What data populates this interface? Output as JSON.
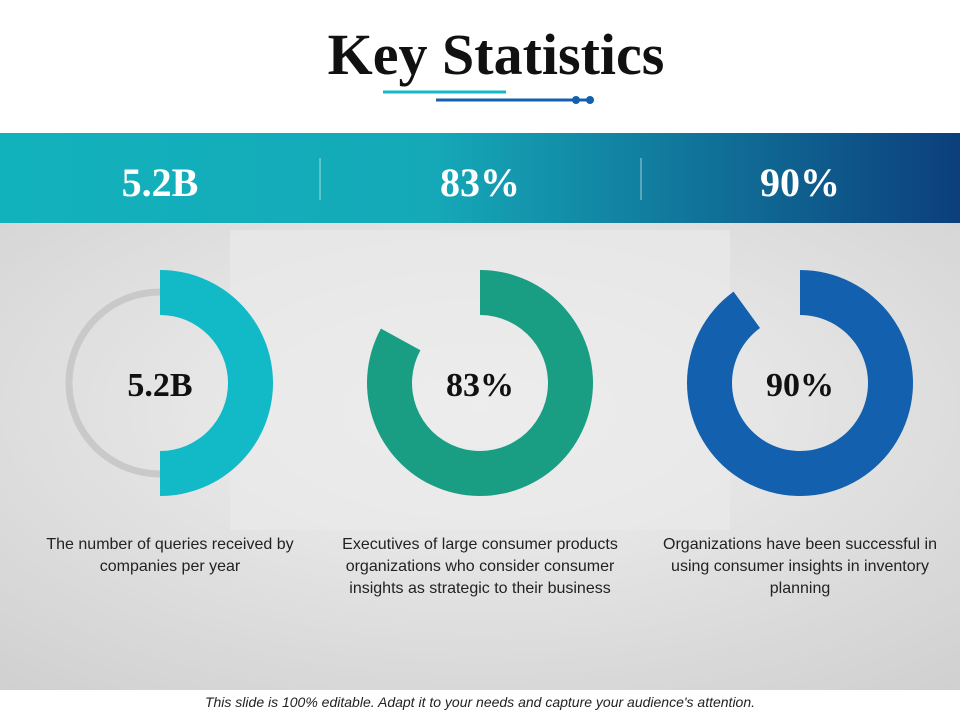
{
  "title": "Key Statistics",
  "stats": [
    {
      "value": "5.2B",
      "arc_percent": 50,
      "color": "#12b9c6",
      "description": "The number of queries received by companies per year"
    },
    {
      "value": "83%",
      "arc_percent": 83,
      "color": "#1a9e83",
      "description": "Executives of large consumer products organizations who consider consumer insights as strategic to their business"
    },
    {
      "value": "90%",
      "arc_percent": 90,
      "color": "#1360ae",
      "description": "Organizations have been successful in using consumer insights in inventory planning"
    }
  ],
  "footer": "This slide is 100% editable. Adapt it to your needs and capture your audience's attention."
}
